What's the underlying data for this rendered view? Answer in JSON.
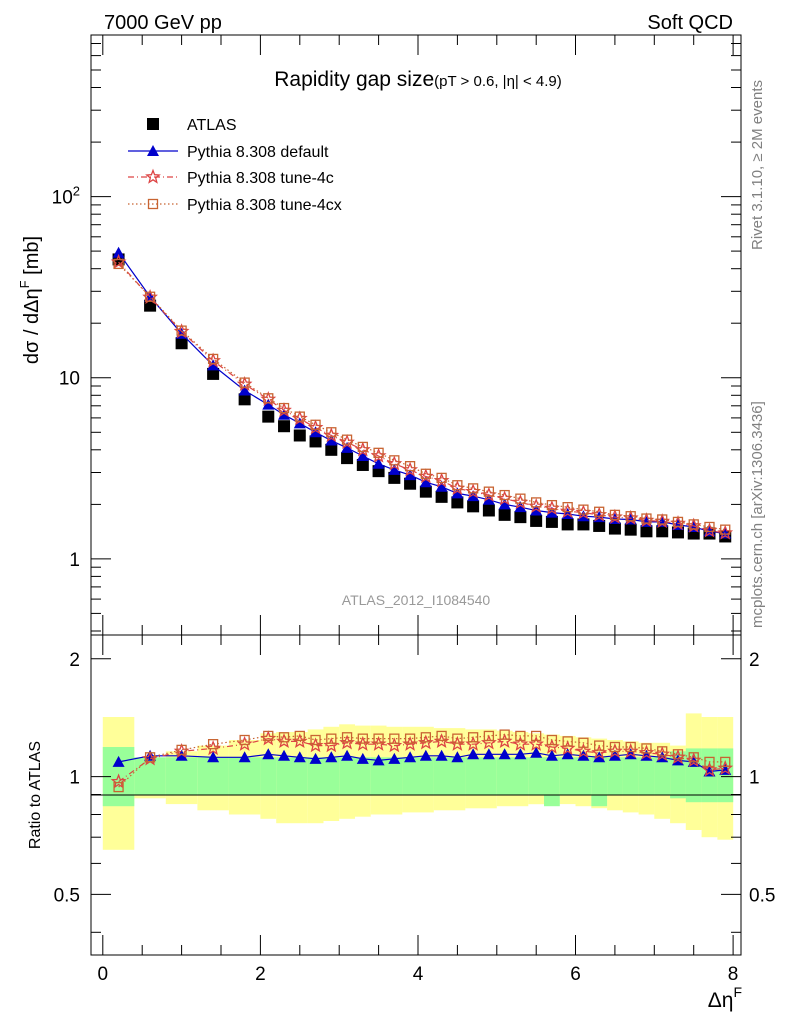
{
  "header": {
    "left_label": "7000 GeV pp",
    "right_label": "Soft QCD"
  },
  "side_labels": {
    "rivet": "Rivet 3.1.10, ≥ 2M events",
    "mcplots": "mcplots.cern.ch [arXiv:1306.3436]"
  },
  "analysis_id": "ATLAS_2012_I1084540",
  "chart_data": [
    {
      "type": "scatter",
      "panel": "main",
      "title": "Rapidity gap size",
      "subtitle": "(pT > 0.6, |η| < 4.9)",
      "xlabel": "ΔηF",
      "ylabel": "dσ / dΔηF [mb]",
      "xlim": [
        -0.15,
        8.1
      ],
      "ylim": [
        0.38,
        780
      ],
      "yscale": "log",
      "y_tick_labels": [
        "1",
        "10",
        "10^2"
      ],
      "legend_position": "top-left",
      "x": [
        0.2,
        0.6,
        1.0,
        1.4,
        1.8,
        2.1,
        2.3,
        2.5,
        2.7,
        2.9,
        3.1,
        3.3,
        3.5,
        3.7,
        3.9,
        4.1,
        4.3,
        4.5,
        4.7,
        4.9,
        5.1,
        5.3,
        5.5,
        5.7,
        5.9,
        6.1,
        6.3,
        6.5,
        6.7,
        6.9,
        7.1,
        7.3,
        7.5,
        7.7,
        7.9
      ],
      "series": [
        {
          "name": "ATLAS",
          "marker": "square",
          "color": "#000000",
          "values": [
            45.0,
            25.0,
            15.5,
            10.5,
            7.6,
            6.1,
            5.4,
            4.8,
            4.45,
            4.0,
            3.6,
            3.3,
            3.05,
            2.8,
            2.6,
            2.35,
            2.2,
            2.05,
            1.95,
            1.85,
            1.75,
            1.7,
            1.62,
            1.6,
            1.55,
            1.55,
            1.52,
            1.47,
            1.45,
            1.42,
            1.42,
            1.4,
            1.38,
            1.38,
            1.33
          ]
        },
        {
          "name": "Pythia 8.308 default",
          "marker": "triangle",
          "color": "#0000cc",
          "values": [
            49.0,
            28.0,
            17.5,
            11.7,
            8.5,
            7.1,
            6.25,
            5.6,
            5.0,
            4.5,
            4.1,
            3.7,
            3.35,
            3.1,
            2.9,
            2.65,
            2.5,
            2.3,
            2.22,
            2.12,
            2.0,
            1.93,
            1.85,
            1.8,
            1.77,
            1.72,
            1.7,
            1.66,
            1.65,
            1.6,
            1.6,
            1.54,
            1.5,
            1.42,
            1.38
          ]
        },
        {
          "name": "Pythia 8.308 tune-4c",
          "marker": "star",
          "color": "#dd4444",
          "values": [
            43.5,
            27.8,
            18.0,
            12.4,
            9.2,
            7.6,
            6.6,
            5.95,
            5.3,
            4.8,
            4.4,
            4.0,
            3.7,
            3.35,
            3.1,
            2.85,
            2.7,
            2.45,
            2.35,
            2.25,
            2.15,
            2.05,
            1.95,
            1.9,
            1.83,
            1.8,
            1.75,
            1.7,
            1.68,
            1.63,
            1.61,
            1.57,
            1.52,
            1.43,
            1.39
          ]
        },
        {
          "name": "Pythia 8.308 tune-4cx",
          "marker": "open-square",
          "color": "#c86432",
          "values": [
            42.5,
            28.0,
            18.2,
            12.7,
            9.4,
            7.7,
            6.8,
            6.1,
            5.5,
            5.0,
            4.55,
            4.15,
            3.85,
            3.5,
            3.25,
            2.95,
            2.8,
            2.55,
            2.45,
            2.35,
            2.25,
            2.15,
            2.05,
            1.98,
            1.93,
            1.87,
            1.82,
            1.75,
            1.72,
            1.67,
            1.65,
            1.6,
            1.55,
            1.5,
            1.45
          ]
        }
      ]
    },
    {
      "type": "scatter",
      "panel": "ratio",
      "xlabel": "ΔηF",
      "ylabel": "Ratio to ATLAS",
      "xlim": [
        -0.15,
        8.1
      ],
      "ylim": [
        0.35,
        2.3
      ],
      "yscale": "log",
      "y_tick_labels": [
        "0.5",
        "1",
        "2"
      ],
      "x_tick_labels": [
        "0",
        "2",
        "4",
        "6",
        "8"
      ],
      "x": [
        0.2,
        0.6,
        1.0,
        1.4,
        1.8,
        2.1,
        2.3,
        2.5,
        2.7,
        2.9,
        3.1,
        3.3,
        3.5,
        3.7,
        3.9,
        4.1,
        4.3,
        4.5,
        4.7,
        4.9,
        5.1,
        5.3,
        5.5,
        5.7,
        5.9,
        6.1,
        6.3,
        6.5,
        6.7,
        6.9,
        7.1,
        7.3,
        7.5,
        7.7,
        7.9
      ],
      "bands": {
        "bin_edges": [
          0.0,
          0.4,
          0.8,
          1.2,
          1.6,
          2.0,
          2.2,
          2.4,
          2.6,
          2.8,
          3.0,
          3.2,
          3.4,
          3.6,
          3.8,
          4.0,
          4.2,
          4.4,
          4.6,
          4.8,
          5.0,
          5.2,
          5.4,
          5.6,
          5.8,
          6.0,
          6.2,
          6.4,
          6.6,
          6.8,
          7.0,
          7.2,
          7.4,
          7.6,
          7.8,
          8.0
        ],
        "stat_low": [
          0.84,
          0.9,
          0.9,
          0.9,
          0.9,
          0.9,
          0.9,
          0.9,
          0.9,
          0.9,
          0.9,
          0.9,
          0.9,
          0.9,
          0.9,
          0.9,
          0.9,
          0.9,
          0.9,
          0.9,
          0.9,
          0.9,
          0.9,
          0.84,
          0.9,
          0.9,
          0.84,
          0.9,
          0.9,
          0.9,
          0.9,
          0.88,
          0.86,
          0.86,
          0.86
        ],
        "stat_high": [
          1.19,
          1.12,
          1.12,
          1.12,
          1.12,
          1.12,
          1.12,
          1.12,
          1.12,
          1.12,
          1.12,
          1.12,
          1.12,
          1.12,
          1.12,
          1.12,
          1.12,
          1.12,
          1.12,
          1.12,
          1.12,
          1.12,
          1.12,
          1.12,
          1.12,
          1.12,
          1.12,
          1.12,
          1.12,
          1.12,
          1.12,
          1.16,
          1.18,
          1.18,
          1.18
        ],
        "syst_low": [
          0.65,
          0.88,
          0.85,
          0.82,
          0.8,
          0.78,
          0.76,
          0.76,
          0.76,
          0.77,
          0.78,
          0.79,
          0.8,
          0.8,
          0.81,
          0.81,
          0.82,
          0.82,
          0.83,
          0.83,
          0.84,
          0.84,
          0.85,
          0.85,
          0.85,
          0.84,
          0.83,
          0.82,
          0.81,
          0.8,
          0.78,
          0.76,
          0.73,
          0.7,
          0.69
        ],
        "syst_high": [
          1.42,
          1.1,
          1.16,
          1.2,
          1.24,
          1.29,
          1.3,
          1.3,
          1.32,
          1.34,
          1.36,
          1.35,
          1.35,
          1.34,
          1.34,
          1.34,
          1.33,
          1.33,
          1.32,
          1.32,
          1.31,
          1.3,
          1.29,
          1.28,
          1.27,
          1.26,
          1.25,
          1.24,
          1.23,
          1.22,
          1.22,
          1.2,
          1.45,
          1.42,
          1.42
        ]
      },
      "series": [
        {
          "name": "Pythia 8.308 default",
          "marker": "triangle",
          "color": "#0000cc",
          "values": [
            1.09,
            1.13,
            1.13,
            1.12,
            1.12,
            1.14,
            1.13,
            1.12,
            1.11,
            1.12,
            1.13,
            1.11,
            1.1,
            1.11,
            1.12,
            1.13,
            1.13,
            1.12,
            1.14,
            1.14,
            1.14,
            1.14,
            1.15,
            1.13,
            1.14,
            1.13,
            1.12,
            1.13,
            1.14,
            1.13,
            1.12,
            1.1,
            1.09,
            1.03,
            1.04
          ]
        },
        {
          "name": "Pythia 8.308 tune-4c",
          "marker": "star",
          "color": "#dd4444",
          "values": [
            0.97,
            1.11,
            1.16,
            1.18,
            1.21,
            1.25,
            1.23,
            1.23,
            1.2,
            1.2,
            1.22,
            1.21,
            1.21,
            1.2,
            1.21,
            1.22,
            1.23,
            1.21,
            1.21,
            1.22,
            1.23,
            1.21,
            1.21,
            1.19,
            1.18,
            1.16,
            1.15,
            1.16,
            1.16,
            1.15,
            1.14,
            1.12,
            1.1,
            1.04,
            1.05
          ]
        },
        {
          "name": "Pythia 8.308 tune-4cx",
          "marker": "open-square",
          "color": "#c86432",
          "values": [
            0.94,
            1.12,
            1.17,
            1.21,
            1.24,
            1.27,
            1.26,
            1.27,
            1.24,
            1.25,
            1.26,
            1.25,
            1.25,
            1.25,
            1.25,
            1.26,
            1.27,
            1.25,
            1.26,
            1.27,
            1.28,
            1.27,
            1.27,
            1.24,
            1.23,
            1.22,
            1.2,
            1.19,
            1.19,
            1.18,
            1.16,
            1.14,
            1.12,
            1.09,
            1.09
          ]
        }
      ]
    }
  ],
  "colors": {
    "stat_band": "#99ff99",
    "syst_band": "#ffff99",
    "analysis_label": "#999999",
    "side_label": "#808080"
  }
}
